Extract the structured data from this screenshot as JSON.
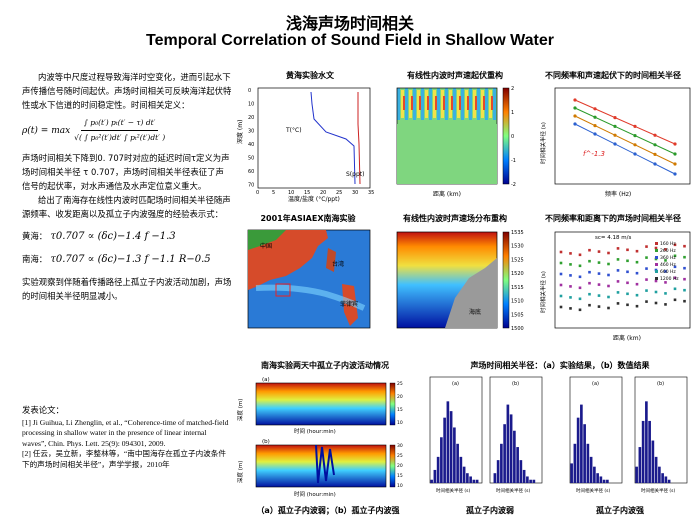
{
  "title_cn": "浅海声场时间相关",
  "title_en": "Temporal Correlation of Sound Field in Shallow Water",
  "intro": {
    "p1": "内波等中尺度过程导致海洋时空变化，进而引起水下声传播信号随时间起伏。声场时间相关可反映海洋起伏特性或水下信道的时间稳定性。时间相关定义：",
    "formula_lhs": "ρ(t) = max",
    "formula_num": "∫ p₀(t′) pₜ(t′ − τ) dt′",
    "formula_den": "√( ∫ p₀²(t′)dt′ ∫ pₜ²(t′)dt′ )",
    "p2": "声场时间相关下降到0. 707时对应的延迟时间τ定义为声场时间相关半径 τ 0.707，声场时间相关半径表征了声信号的起伏率，对水声通信及水声定位意义重大。",
    "p3": "给出了南海存在线性内波时匹配场时间相关半径随声源频率、收发距离以及孤立子内波强度的经验表示式：",
    "law1_label": "黄海：",
    "law1_expr": "τ0.707 ∝ (δc)−1.4 f −1.3",
    "law2_label": "南海：",
    "law2_expr": "τ0.707 ∝ (δc)−1.3 f −1.1 R−0.5",
    "p4": "实验观察到伴随着传播路径上孤立子内波活动加剧，声场的时间相关半径明显减小。"
  },
  "refs": {
    "heading": "发表论文：",
    "r1": "[1] Ji Guihua, Li Zhenglin, et al., “Coherence-time of matched-field processing in shallow water in the presence of linear internal waves”, Chin. Phys. Lett. 25(9): 094301, 2009.",
    "r2": "[2] 任云，吴立新，李整林等，“南中国海存在孤立子内波条件下的声场时间相关半径”，声学学报，2010年"
  },
  "captions": {
    "c1": "黄海实验水文",
    "c2": "有线性内波时声速起伏重构",
    "c3": "不同频率和声速起伏下的时间相关半径",
    "c4": "2001年ASIAEX南海实验",
    "c5": "有线性内波时声速场分布重构",
    "c6": "不同频率和距离下的声场时间相关半径",
    "c7": "南海实验两天中孤立子内波活动情况",
    "c8": "声场时间相关半径：（a）实验结果，（b）数值结果",
    "b1": "（a）孤立子内波弱；（b）孤立子内波强",
    "b2": "孤立子内波弱",
    "b3": "孤立子内波强"
  },
  "figure_text": {
    "hydro_temp": "T(°C)",
    "hydro_sal": "S(ppt)",
    "hydro_ylabel": "深度 (m)",
    "hydro_xlabel": "温度/盐度 (°C/ppt)",
    "hydro_xticks": [
      "0",
      "5",
      "10",
      "15",
      "20",
      "25",
      "30",
      "35"
    ],
    "hydro_yticks": [
      "0",
      "10",
      "20",
      "30",
      "40",
      "50",
      "60",
      "70"
    ],
    "map_labels": [
      "中国",
      "台湾",
      "菲律宾"
    ],
    "ssp_label": "海底",
    "ssp_colorbar": [
      "1535",
      "1530",
      "1525",
      "1520",
      "1515",
      "1510",
      "1505",
      "1500"
    ],
    "fluct_colorbar": [
      "2",
      "1",
      "0",
      "-1",
      "-2"
    ],
    "fluct_xlabel": "距离 (km)",
    "freq_xlabel": "频率 (Hz)",
    "freq_ylabel": "时间相关半径 (s)",
    "freq_annot": "f^-1.3",
    "range_xlabel": "距离 (km)",
    "range_ylabel": "时间相关半径 (s)",
    "range_top": "sc= 4.18 m/s",
    "range_legend": [
      "160 Hz",
      "260 Hz",
      "360 Hz",
      "460 Hz",
      "660 Hz",
      "1200 Hz"
    ],
    "iw_xlabel": "时间 (hour:min)",
    "iw_ylabel": "深度 (m)",
    "iw_cb_a": [
      "25",
      "20",
      "15",
      "10"
    ],
    "iw_cb_b": [
      "30",
      "25",
      "20",
      "15",
      "10"
    ],
    "hist_xlabel": "时间相关半径 (s)",
    "hist_ylabel": "概率 (%)",
    "panel_a": "(a)",
    "panel_b": "(b)"
  },
  "chart_data": [
    {
      "type": "bar",
      "title": "孤立子内波弱 (a)",
      "xlabel": "时间相关半径 (s)",
      "ylabel": "概率 (%)",
      "x": [
        0,
        20,
        40,
        60,
        80,
        100,
        120,
        140,
        160,
        180,
        200,
        220,
        240,
        260,
        280,
        300
      ],
      "values": [
        1,
        4,
        8,
        14,
        20,
        25,
        22,
        17,
        12,
        8,
        5,
        3,
        2,
        1,
        1,
        0
      ]
    },
    {
      "type": "bar",
      "title": "孤立子内波弱 (b)",
      "xlabel": "时间相关半径 (s)",
      "ylabel": "概率 (%)",
      "x": [
        0,
        20,
        40,
        60,
        80,
        100,
        120,
        140,
        160,
        180,
        200,
        220,
        240,
        260,
        280,
        300
      ],
      "values": [
        0,
        3,
        7,
        12,
        18,
        24,
        21,
        16,
        11,
        7,
        4,
        2,
        1,
        1,
        0,
        0
      ]
    },
    {
      "type": "bar",
      "title": "孤立子内波强 (a)",
      "xlabel": "时间相关半径 (s)",
      "ylabel": "概率 (%)",
      "x": [
        0,
        20,
        40,
        60,
        80,
        100,
        120,
        140,
        160,
        180,
        200,
        220,
        240,
        260,
        280,
        300
      ],
      "values": [
        6,
        12,
        20,
        24,
        18,
        12,
        8,
        5,
        3,
        2,
        1,
        1,
        0,
        0,
        0,
        0
      ]
    },
    {
      "type": "bar",
      "title": "孤立子内波强 (b)",
      "xlabel": "时间相关半径 (s)",
      "ylabel": "概率 (%)",
      "x": [
        0,
        20,
        40,
        60,
        80,
        100,
        120,
        140,
        160,
        180,
        200,
        220,
        240,
        260,
        280,
        300
      ],
      "values": [
        5,
        11,
        19,
        25,
        19,
        13,
        8,
        5,
        3,
        2,
        1,
        0,
        0,
        0,
        0,
        0
      ]
    }
  ],
  "colors": {
    "title": "#000000",
    "jet_low": "#00008f",
    "jet_high": "#800000"
  }
}
